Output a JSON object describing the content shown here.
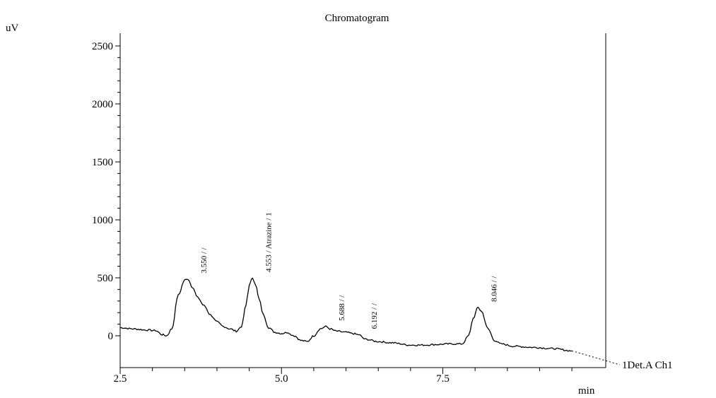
{
  "chart_data": {
    "type": "line",
    "title": "Chromatogram",
    "xlabel": "min",
    "ylabel": "uV",
    "xlim": [
      2.5,
      9.5
    ],
    "ylim": [
      -250,
      2600
    ],
    "x_ticks": [
      {
        "value": 2.5,
        "label": "2.5"
      },
      {
        "value": 5.0,
        "label": "5.0"
      },
      {
        "value": 7.5,
        "label": "7.5"
      }
    ],
    "y_ticks": [
      {
        "value": 0,
        "label": "0"
      },
      {
        "value": 500,
        "label": "500"
      },
      {
        "value": 1000,
        "label": "1000"
      },
      {
        "value": 1500,
        "label": "1500"
      },
      {
        "value": 2000,
        "label": "2000"
      },
      {
        "value": 2500,
        "label": "2500"
      }
    ],
    "grid": false,
    "series": [
      {
        "name": "1Det.A Ch1",
        "x": [
          2.5,
          2.7,
          2.9,
          3.05,
          3.15,
          3.22,
          3.3,
          3.4,
          3.5,
          3.55,
          3.62,
          3.7,
          3.8,
          3.9,
          4.0,
          4.1,
          4.2,
          4.3,
          4.38,
          4.45,
          4.5,
          4.553,
          4.6,
          4.65,
          4.72,
          4.8,
          4.9,
          5.0,
          5.1,
          5.15,
          5.2,
          5.3,
          5.4,
          5.5,
          5.6,
          5.688,
          5.75,
          5.85,
          6.0,
          6.1,
          6.192,
          6.3,
          6.5,
          6.7,
          7.0,
          7.2,
          7.4,
          7.6,
          7.8,
          7.9,
          7.97,
          8.046,
          8.1,
          8.2,
          8.3,
          8.4,
          8.6,
          8.9,
          9.2,
          9.5
        ],
        "y": [
          70,
          60,
          50,
          45,
          10,
          0,
          60,
          350,
          480,
          490,
          420,
          330,
          260,
          180,
          120,
          80,
          60,
          40,
          80,
          260,
          440,
          500,
          440,
          320,
          180,
          70,
          30,
          20,
          30,
          10,
          0,
          -40,
          -50,
          0,
          60,
          80,
          60,
          40,
          30,
          20,
          10,
          -30,
          -50,
          -60,
          -80,
          -80,
          -75,
          -70,
          -70,
          0,
          150,
          245,
          210,
          60,
          -40,
          -70,
          -90,
          -100,
          -110,
          -130
        ]
      }
    ],
    "annotations": [
      {
        "x": 3.55,
        "y": 490,
        "text": "3.550 / /"
      },
      {
        "x": 4.553,
        "y": 500,
        "text": "4.553 / Atrazine / 1"
      },
      {
        "x": 5.688,
        "y": 80,
        "text": "5.688 / /"
      },
      {
        "x": 6.192,
        "y": 10,
        "text": "6.192 / /"
      },
      {
        "x": 8.046,
        "y": 245,
        "text": "8.046 / /"
      }
    ]
  }
}
